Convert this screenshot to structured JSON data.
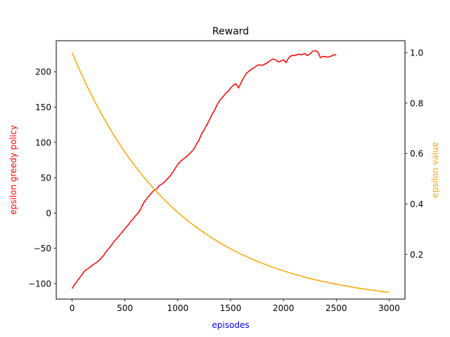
{
  "chart_data": {
    "type": "line",
    "title": "Reward",
    "xlabel": "episodes",
    "xlabel_color": "#0000ff",
    "ylabel_left": "epsilon greedy policy",
    "ylabel_left_color": "#ff0000",
    "ylabel_right": "epsilon value",
    "ylabel_right_color": "#ffa500",
    "xlim": [
      -150,
      3150
    ],
    "ylim_left": [
      -122,
      244
    ],
    "ylim_right": [
      0.0225,
      1.0475
    ],
    "grid": false,
    "x_ticks": [
      0,
      500,
      1000,
      1500,
      2000,
      2500,
      3000
    ],
    "y_left_ticks": [
      -100,
      -50,
      0,
      50,
      100,
      150,
      200
    ],
    "y_right_ticks": [
      0.2,
      0.4,
      0.6,
      0.8,
      1.0
    ],
    "series": [
      {
        "axis": "left",
        "color": "#ff0000",
        "x": [
          0,
          25,
          50,
          75,
          100,
          125,
          150,
          175,
          200,
          225,
          250,
          275,
          300,
          325,
          350,
          375,
          400,
          425,
          450,
          475,
          500,
          525,
          550,
          575,
          600,
          625,
          650,
          675,
          700,
          725,
          750,
          775,
          800,
          825,
          850,
          875,
          900,
          925,
          950,
          975,
          1000,
          1025,
          1050,
          1075,
          1100,
          1125,
          1150,
          1175,
          1200,
          1225,
          1250,
          1275,
          1300,
          1325,
          1350,
          1375,
          1400,
          1425,
          1450,
          1475,
          1500,
          1525,
          1550,
          1575,
          1600,
          1625,
          1650,
          1675,
          1700,
          1725,
          1750,
          1775,
          1800,
          1825,
          1850,
          1875,
          1900,
          1925,
          1950,
          1975,
          2000,
          2025,
          2050,
          2075,
          2100,
          2125,
          2150,
          2175,
          2200,
          2225,
          2250,
          2275,
          2300,
          2325,
          2350,
          2375,
          2400,
          2425,
          2450,
          2475,
          2500
        ],
        "values": [
          -107,
          -101,
          -96,
          -91,
          -86,
          -81,
          -79,
          -76,
          -73,
          -71,
          -68,
          -64,
          -60,
          -54,
          -50,
          -45,
          -40,
          -36,
          -31,
          -27,
          -22,
          -18,
          -13,
          -9,
          -4,
          0,
          6,
          14,
          19,
          24,
          28,
          32,
          34,
          39,
          41,
          44,
          48,
          52,
          57,
          63,
          69,
          73,
          76,
          79,
          82,
          86,
          90,
          97,
          103,
          112,
          118,
          125,
          132,
          140,
          146,
          154,
          160,
          164,
          169,
          172,
          177,
          181,
          183,
          177,
          185,
          192,
          198,
          201,
          204,
          206,
          209,
          210,
          209,
          211,
          213,
          216,
          218,
          217,
          214,
          215,
          217,
          213,
          220,
          223,
          223,
          224,
          225,
          224,
          226,
          223,
          225,
          229,
          230,
          228,
          220,
          222,
          221,
          221,
          222,
          224,
          224
        ]
      },
      {
        "axis": "right",
        "color": "#ffa500",
        "x": [
          0,
          50,
          100,
          150,
          200,
          250,
          300,
          350,
          400,
          450,
          500,
          550,
          600,
          650,
          700,
          750,
          800,
          850,
          900,
          950,
          1000,
          1050,
          1100,
          1150,
          1200,
          1250,
          1300,
          1350,
          1400,
          1450,
          1500,
          1550,
          1600,
          1650,
          1700,
          1750,
          1800,
          1850,
          1900,
          1950,
          2000,
          2050,
          2100,
          2150,
          2200,
          2250,
          2300,
          2350,
          2400,
          2450,
          2500,
          2550,
          2600,
          2650,
          2700,
          2750,
          2800,
          2850,
          2900,
          2950,
          3000
        ],
        "values": [
          1.0,
          0.951,
          0.9045,
          0.8602,
          0.8181,
          0.7782,
          0.7401,
          0.7039,
          0.6694,
          0.6367,
          0.6055,
          0.5759,
          0.5477,
          0.5209,
          0.4954,
          0.4712,
          0.4481,
          0.4262,
          0.4053,
          0.3855,
          0.3666,
          0.3487,
          0.3316,
          0.3154,
          0.3,
          0.2853,
          0.2713,
          0.258,
          0.2454,
          0.2334,
          0.222,
          0.2111,
          0.2008,
          0.191,
          0.1816,
          0.1727,
          0.1643,
          0.1562,
          0.1486,
          0.1413,
          0.1344,
          0.1278,
          0.1216,
          0.1156,
          0.11,
          0.1046,
          0.0995,
          0.0946,
          0.09,
          0.0856,
          0.0814,
          0.0774,
          0.0736,
          0.07,
          0.0666,
          0.0633,
          0.0602,
          0.0573,
          0.0545,
          0.0518,
          0.05
        ]
      }
    ]
  }
}
